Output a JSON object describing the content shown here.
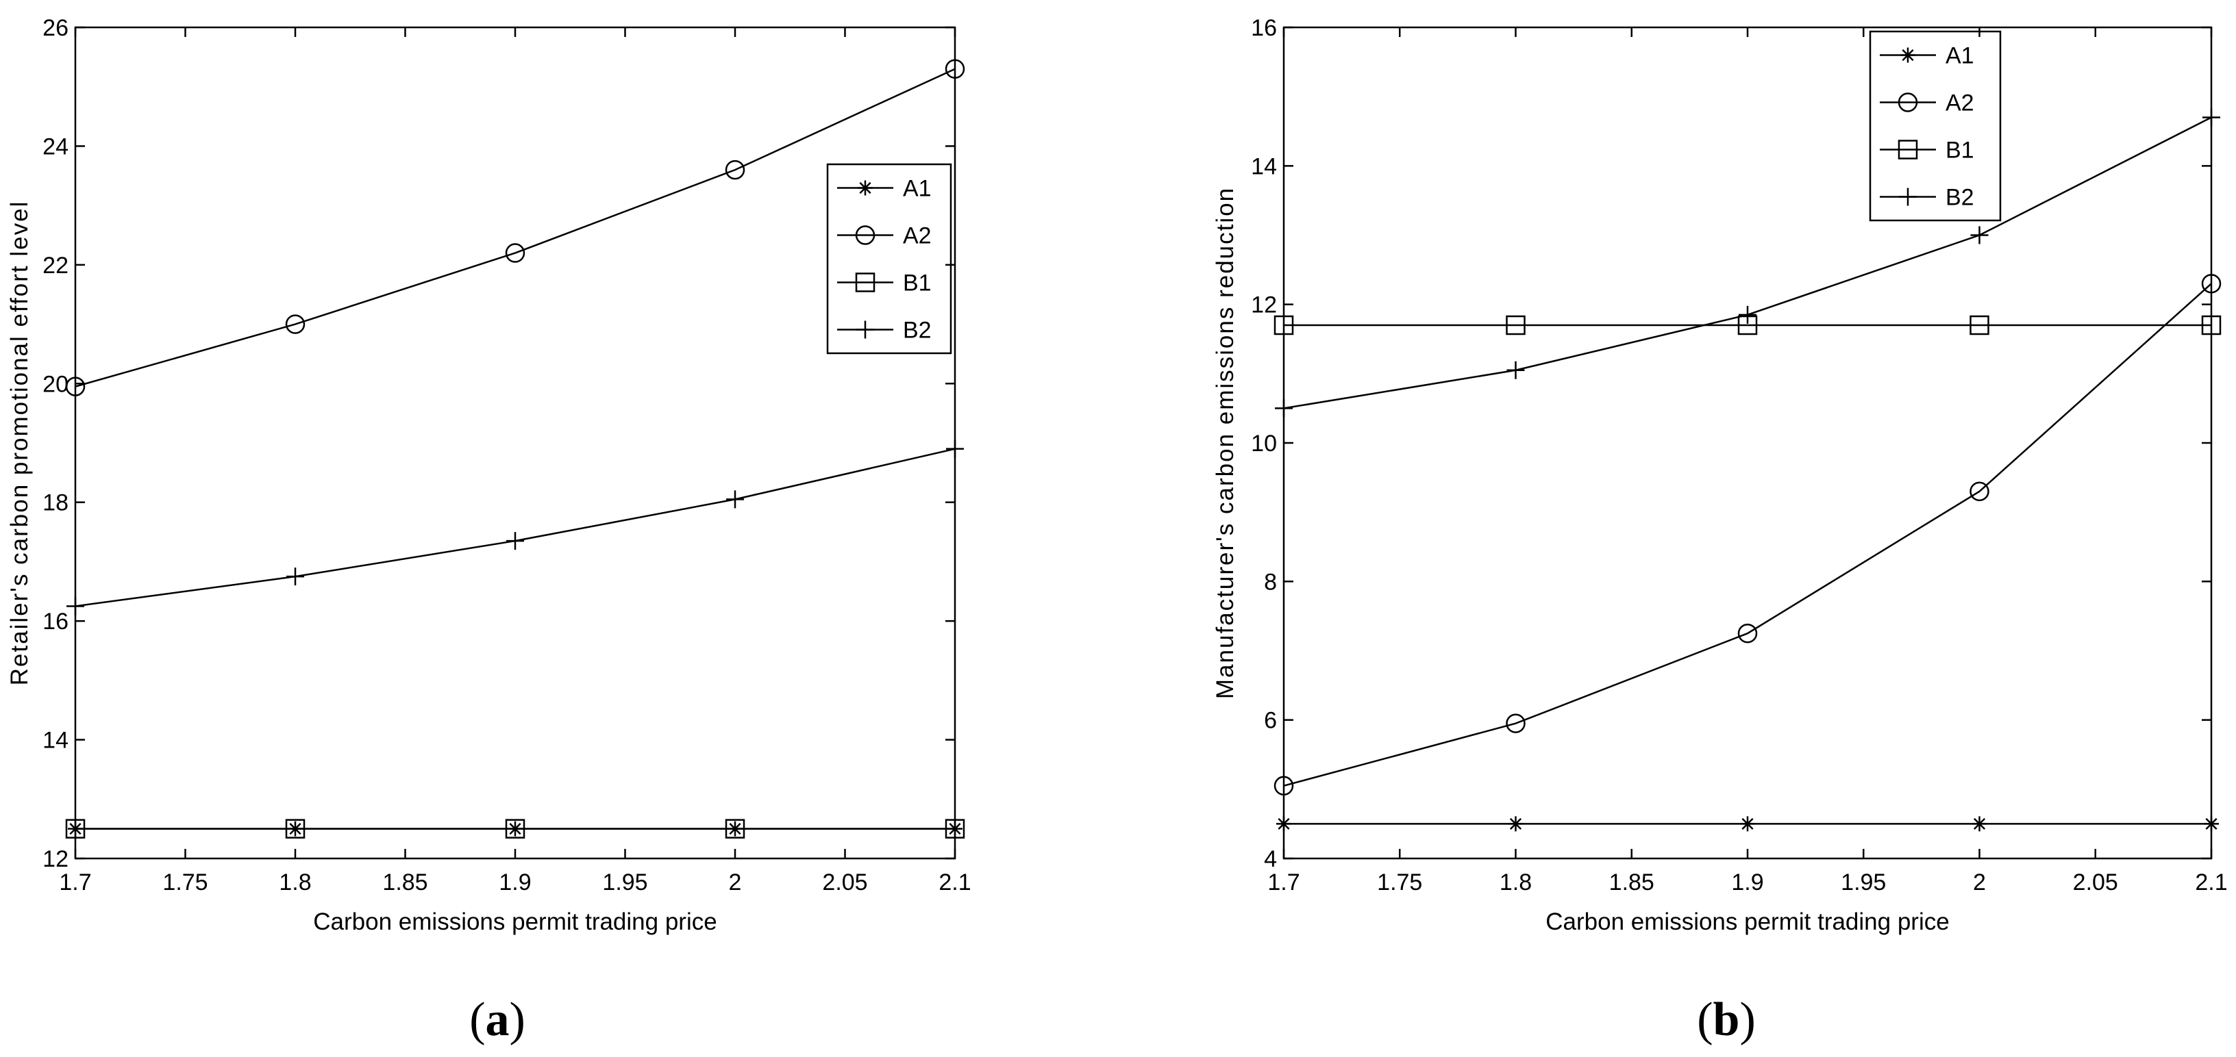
{
  "chart_data": [
    {
      "type": "line",
      "panel_label_prefix": "(",
      "panel_label_letter": "a",
      "panel_label_suffix": ")",
      "xlabel": "Carbon emissions permit trading price",
      "ylabel": "Retailer's carbon promotional effort level",
      "xlim": [
        1.7,
        2.1
      ],
      "ylim": [
        12,
        26
      ],
      "xticks": [
        1.7,
        1.75,
        1.8,
        1.85,
        1.9,
        1.95,
        2.0,
        2.05,
        2.1
      ],
      "xtick_labels": [
        "1.7",
        "1.75",
        "1.8",
        "1.85",
        "1.9",
        "1.95",
        "2",
        "2.05",
        "2.1"
      ],
      "yticks": [
        12,
        14,
        16,
        18,
        20,
        22,
        24,
        26
      ],
      "ytick_labels": [
        "12",
        "14",
        "16",
        "18",
        "20",
        "22",
        "24",
        "26"
      ],
      "legend_position": "upper-right",
      "grid": false,
      "x": [
        1.7,
        1.8,
        1.9,
        2.0,
        2.1
      ],
      "series": [
        {
          "name": "A1",
          "marker": "star",
          "values": [
            12.5,
            12.5,
            12.5,
            12.5,
            12.5
          ]
        },
        {
          "name": "A2",
          "marker": "circle",
          "values": [
            19.95,
            21.0,
            22.2,
            23.6,
            25.3
          ]
        },
        {
          "name": "B1",
          "marker": "square",
          "values": [
            12.5,
            12.5,
            12.5,
            12.5,
            12.5
          ]
        },
        {
          "name": "B2",
          "marker": "plus",
          "values": [
            16.25,
            16.75,
            17.35,
            18.05,
            18.9
          ]
        }
      ]
    },
    {
      "type": "line",
      "panel_label_prefix": "(",
      "panel_label_letter": "b",
      "panel_label_suffix": ")",
      "xlabel": "Carbon emissions permit trading price",
      "ylabel": "Manufacturer's carbon emissions reduction",
      "xlim": [
        1.7,
        2.1
      ],
      "ylim": [
        4,
        16
      ],
      "xticks": [
        1.7,
        1.75,
        1.8,
        1.85,
        1.9,
        1.95,
        2.0,
        2.05,
        2.1
      ],
      "xtick_labels": [
        "1.7",
        "1.75",
        "1.8",
        "1.85",
        "1.9",
        "1.95",
        "2",
        "2.05",
        "2.1"
      ],
      "yticks": [
        4,
        6,
        8,
        10,
        12,
        14,
        16
      ],
      "ytick_labels": [
        "4",
        "6",
        "8",
        "10",
        "12",
        "14",
        "16"
      ],
      "legend_position": "top-center-right",
      "grid": false,
      "x": [
        1.7,
        1.8,
        1.9,
        2.0,
        2.1
      ],
      "series": [
        {
          "name": "A1",
          "marker": "star",
          "values": [
            4.5,
            4.5,
            4.5,
            4.5,
            4.5
          ]
        },
        {
          "name": "A2",
          "marker": "circle",
          "values": [
            5.05,
            5.95,
            7.25,
            9.3,
            12.3
          ]
        },
        {
          "name": "B1",
          "marker": "square",
          "values": [
            11.7,
            11.7,
            11.7,
            11.7,
            11.7
          ]
        },
        {
          "name": "B2",
          "marker": "plus",
          "values": [
            10.5,
            11.05,
            11.85,
            13.0,
            14.7
          ]
        }
      ]
    }
  ]
}
